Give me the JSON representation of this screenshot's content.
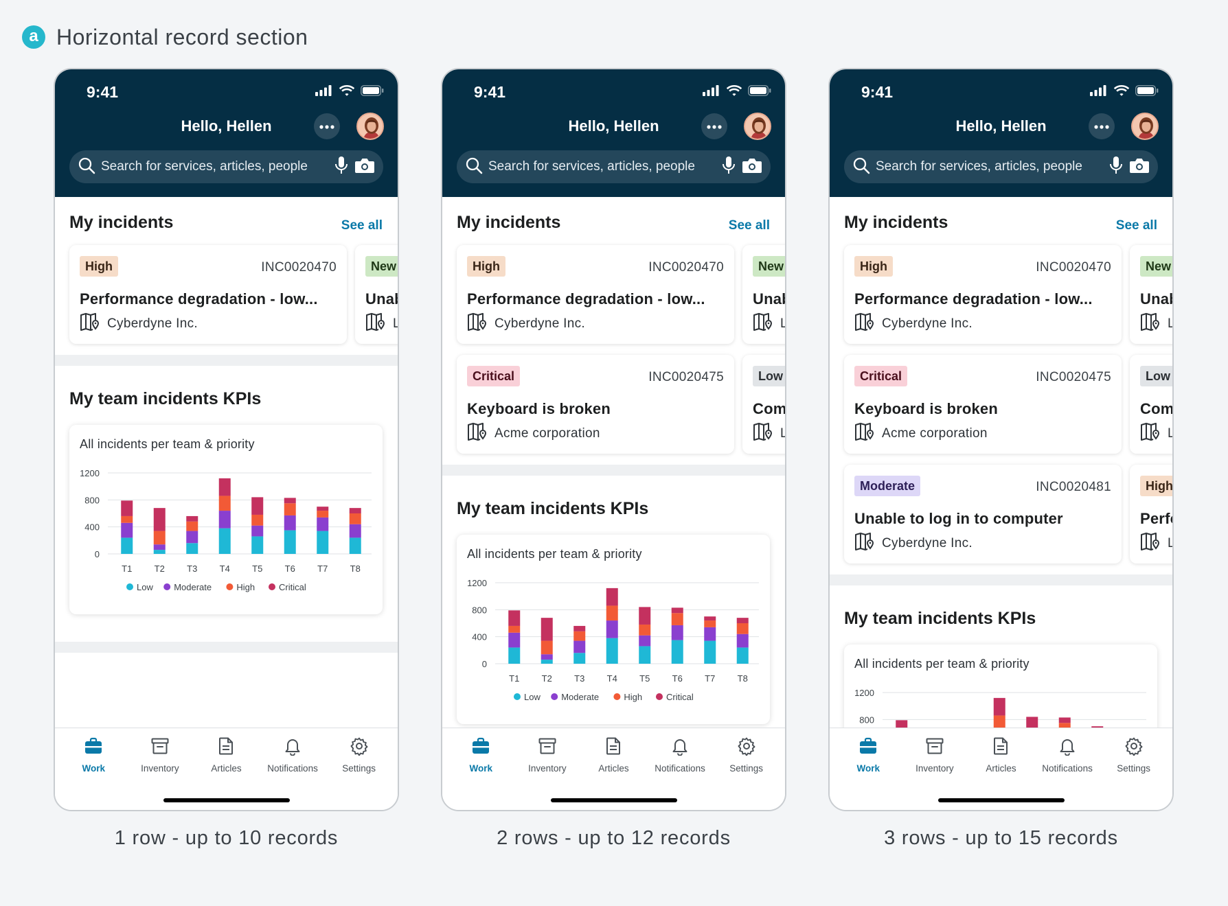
{
  "section": {
    "badge": "a",
    "title": "Horizontal record section"
  },
  "phones": [
    {
      "time": "9:41",
      "greeting": "Hello, Hellen",
      "search_placeholder": "Search for services, articles, people",
      "incidents_title": "My incidents",
      "see_all": "See all",
      "rows": [
        {
          "main": {
            "priority": "High",
            "number": "INC0020470",
            "title": "Performance degradation - low...",
            "company": "Cyberdyne Inc."
          },
          "peek": {
            "priority": "New",
            "title": "Unab",
            "company": "L"
          }
        }
      ],
      "kpi_title": "My team incidents KPIs",
      "chart_title": "All incidents per team & priority",
      "caption": "1 row - up to 10 records"
    },
    {
      "time": "9:41",
      "greeting": "Hello, Hellen",
      "search_placeholder": "Search for services, articles, people",
      "incidents_title": "My incidents",
      "see_all": "See all",
      "rows": [
        {
          "main": {
            "priority": "High",
            "number": "INC0020470",
            "title": "Performance degradation - low...",
            "company": "Cyberdyne Inc."
          },
          "peek": {
            "priority": "New",
            "title": "Unab",
            "company": "L"
          }
        },
        {
          "main": {
            "priority": "Critical",
            "number": "INC0020475",
            "title": "Keyboard is broken",
            "company": "Acme corporation"
          },
          "peek": {
            "priority": "Low",
            "title": "Com",
            "company": "L"
          }
        }
      ],
      "kpi_title": "My team incidents KPIs",
      "chart_title": "All incidents per team & priority",
      "caption": "2 rows - up to 12 records"
    },
    {
      "time": "9:41",
      "greeting": "Hello, Hellen",
      "search_placeholder": "Search for services, articles, people",
      "incidents_title": "My incidents",
      "see_all": "See all",
      "rows": [
        {
          "main": {
            "priority": "High",
            "number": "INC0020470",
            "title": "Performance degradation - low...",
            "company": "Cyberdyne Inc."
          },
          "peek": {
            "priority": "New",
            "title": "Unab",
            "company": "L"
          }
        },
        {
          "main": {
            "priority": "Critical",
            "number": "INC0020475",
            "title": "Keyboard is broken",
            "company": "Acme corporation"
          },
          "peek": {
            "priority": "Low",
            "title": "Com",
            "company": "L"
          }
        },
        {
          "main": {
            "priority": "Moderate",
            "number": "INC0020481",
            "title": "Unable to log in to computer",
            "company": "Cyberdyne Inc."
          },
          "peek": {
            "priority": "High",
            "title": "Perfo",
            "company": "L"
          }
        }
      ],
      "kpi_title": "My team incidents KPIs",
      "chart_title": "All incidents per team & priority",
      "caption": "3 rows - up to 15 records"
    }
  ],
  "tabbar": [
    {
      "label": "Work",
      "icon": "briefcase-icon",
      "active": true
    },
    {
      "label": "Inventory",
      "icon": "archive-box-icon",
      "active": false
    },
    {
      "label": "Articles",
      "icon": "document-icon",
      "active": false
    },
    {
      "label": "Notifications",
      "icon": "bell-icon",
      "active": false
    },
    {
      "label": "Settings",
      "icon": "gear-icon",
      "active": false
    }
  ],
  "colors": {
    "header_bg": "#052e44",
    "accent": "#0a79a8",
    "low": "#1fb8d6",
    "moderate": "#8a3fcf",
    "high": "#f25a36",
    "critical": "#c4315f"
  },
  "chart_data": {
    "type": "bar",
    "stacked": true,
    "title": "All incidents per team & priority",
    "categories": [
      "T1",
      "T2",
      "T3",
      "T4",
      "T5",
      "T6",
      "T7",
      "T8"
    ],
    "series": [
      {
        "name": "Low",
        "values": [
          240,
          60,
          160,
          380,
          260,
          350,
          340,
          240
        ]
      },
      {
        "name": "Moderate",
        "values": [
          220,
          80,
          180,
          260,
          160,
          220,
          200,
          200
        ]
      },
      {
        "name": "High",
        "values": [
          100,
          200,
          140,
          220,
          160,
          180,
          100,
          160
        ]
      },
      {
        "name": "Critical",
        "values": [
          230,
          340,
          80,
          260,
          260,
          80,
          60,
          80
        ]
      }
    ],
    "ylim": [
      0,
      1200
    ],
    "yticks": [
      0,
      400,
      800,
      1200
    ],
    "grid": true,
    "legend": "bottom"
  }
}
